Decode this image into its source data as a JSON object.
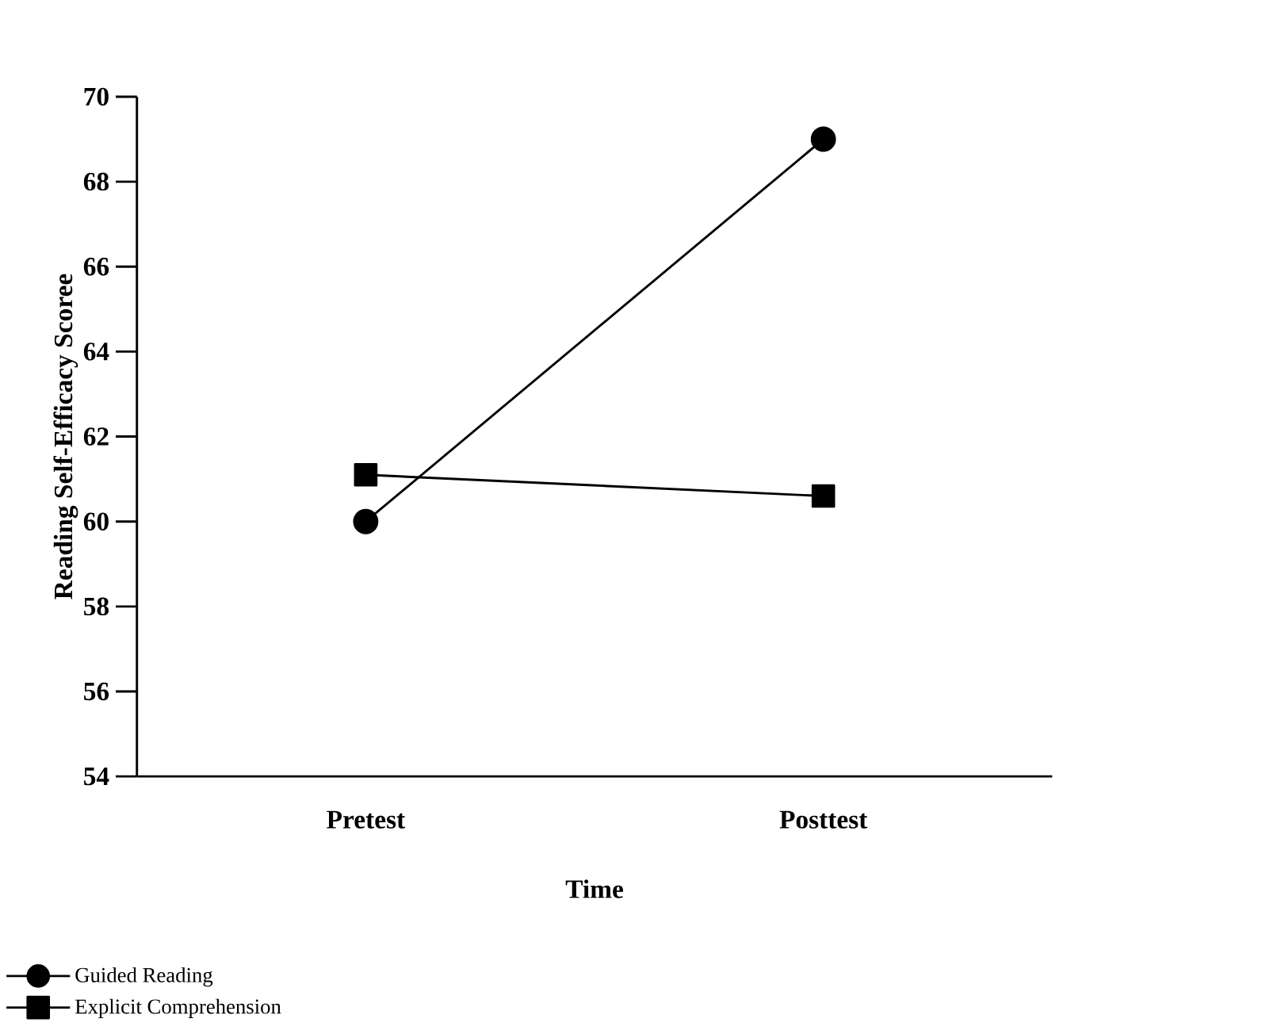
{
  "chart_data": {
    "type": "line",
    "xlabel": "Time",
    "ylabel": "Reading Self-Efficacy Scoree",
    "categories": [
      "Pretest",
      "Posttest"
    ],
    "series": [
      {
        "name": "Guided Reading",
        "color": "#000000",
        "marker": "circle",
        "values": [
          60,
          69
        ]
      },
      {
        "name": "Explicit Comprehension",
        "color": "#000000",
        "marker": "square",
        "values": [
          61.1,
          60.6
        ]
      }
    ],
    "ylim": [
      54,
      70
    ],
    "yticks": [
      54,
      56,
      58,
      60,
      62,
      64,
      66,
      68,
      70
    ],
    "legend": "bottom left",
    "line_style": "solid"
  }
}
